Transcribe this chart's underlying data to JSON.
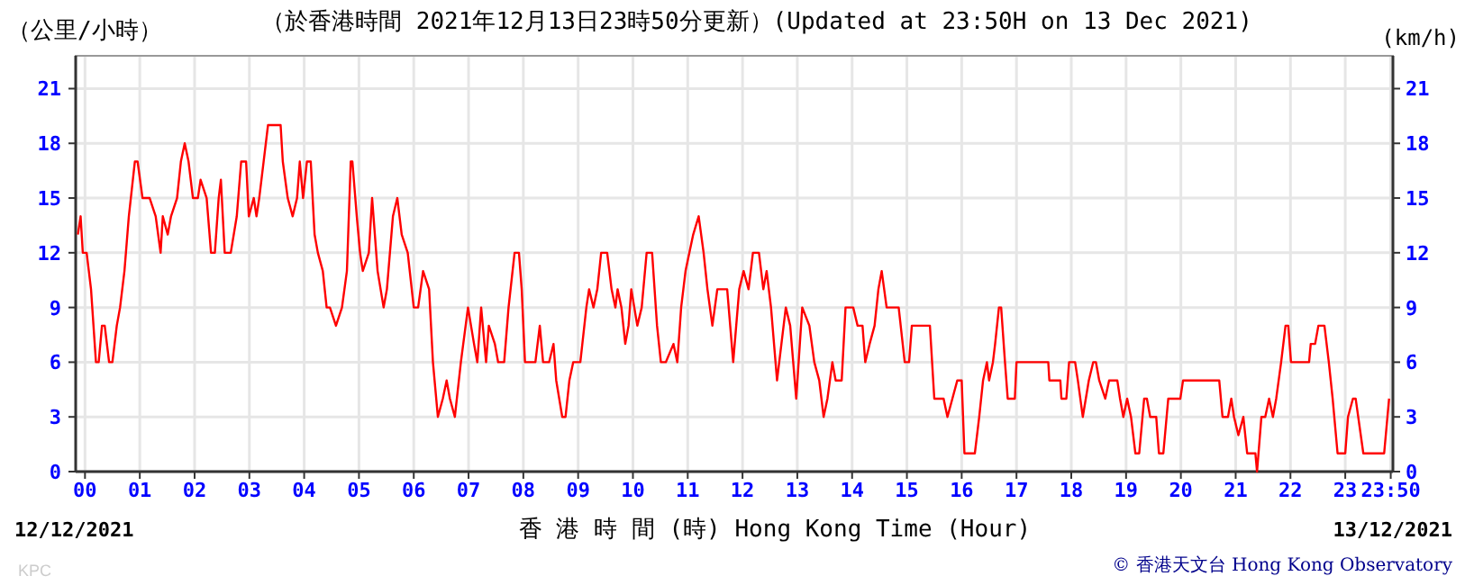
{
  "chart_data": {
    "type": "line",
    "title": "（於香港時間 2021年12月13日23時50分更新）(Updated at 23:50H on 13 Dec 2021)",
    "ylabel": "（公里/小時）",
    "y2label": "(km/h)",
    "xlabel": "香 港 時 間 (時) Hong Kong Time (Hour)",
    "annotations": [
      "12/12/2021",
      "13/12/2021",
      "© 香港天文台 Hong Kong Observatory",
      "KPC"
    ],
    "xlim": [
      -0.17,
      23.87
    ],
    "ylim": [
      0,
      22.8
    ],
    "y2lim": [
      0,
      22.8
    ],
    "xticks": [
      {
        "value": 0,
        "label": "00"
      },
      {
        "value": 1,
        "label": "01"
      },
      {
        "value": 2,
        "label": "02"
      },
      {
        "value": 3,
        "label": "03"
      },
      {
        "value": 4,
        "label": "04"
      },
      {
        "value": 5,
        "label": "05"
      },
      {
        "value": 6,
        "label": "06"
      },
      {
        "value": 7,
        "label": "07"
      },
      {
        "value": 8,
        "label": "08"
      },
      {
        "value": 9,
        "label": "09"
      },
      10,
      11,
      12,
      13,
      14,
      15,
      16,
      17,
      18,
      19,
      20,
      21,
      22,
      23,
      {
        "value": 23.83,
        "label": "23:50"
      }
    ],
    "yticks": [
      0,
      3,
      6,
      9,
      12,
      15,
      18,
      21
    ],
    "y2ticks": [
      0,
      3,
      6,
      9,
      12,
      15,
      18,
      21
    ],
    "grid": true,
    "line_style": "solid",
    "series": [
      {
        "color": "#ff0000",
        "x": [
          -0.13,
          -0.08,
          -0.04,
          0.03,
          0.11,
          0.2,
          0.25,
          0.31,
          0.36,
          0.44,
          0.5,
          0.58,
          0.64,
          0.72,
          0.8,
          0.91,
          0.96,
          1.05,
          1.18,
          1.29,
          1.38,
          1.42,
          1.51,
          1.57,
          1.68,
          1.75,
          1.82,
          1.89,
          1.97,
          2.06,
          2.11,
          2.22,
          2.3,
          2.37,
          2.44,
          2.48,
          2.55,
          2.66,
          2.77,
          2.85,
          2.94,
          2.99,
          3.08,
          3.13,
          3.18,
          3.26,
          3.34,
          3.48,
          3.57,
          3.61,
          3.7,
          3.79,
          3.87,
          3.92,
          3.98,
          4.05,
          4.12,
          4.19,
          4.25,
          4.34,
          4.41,
          4.47,
          4.58,
          4.69,
          4.78,
          4.85,
          4.88,
          4.96,
          5.02,
          5.07,
          5.18,
          5.24,
          5.34,
          5.45,
          5.51,
          5.62,
          5.7,
          5.78,
          5.89,
          6.0,
          6.08,
          6.17,
          6.28,
          6.35,
          6.44,
          6.53,
          6.6,
          6.66,
          6.75,
          6.86,
          6.99,
          7.1,
          7.16,
          7.23,
          7.32,
          7.37,
          7.48,
          7.54,
          7.65,
          7.73,
          7.84,
          7.92,
          7.97,
          8.03,
          8.08,
          8.22,
          8.3,
          8.36,
          8.47,
          8.55,
          8.6,
          8.71,
          8.77,
          8.84,
          8.91,
          9.04,
          9.15,
          9.2,
          9.28,
          9.35,
          9.42,
          9.53,
          9.61,
          9.68,
          9.72,
          9.79,
          9.86,
          9.92,
          9.97,
          10.08,
          10.16,
          10.25,
          10.35,
          10.44,
          10.51,
          10.6,
          10.74,
          10.81,
          10.88,
          10.96,
          11.03,
          11.1,
          11.2,
          11.29,
          11.36,
          11.45,
          11.54,
          11.61,
          11.72,
          11.83,
          11.94,
          12.02,
          12.11,
          12.19,
          12.3,
          12.38,
          12.44,
          12.52,
          12.63,
          12.71,
          12.79,
          12.87,
          12.98,
          13.09,
          13.22,
          13.31,
          13.4,
          13.48,
          13.55,
          13.64,
          13.7,
          13.81,
          13.88,
          14.02,
          14.1,
          14.19,
          14.24,
          14.32,
          14.41,
          14.48,
          14.54,
          14.63,
          14.85,
          14.96,
          15.04,
          15.09,
          15.42,
          15.5,
          15.67,
          15.74,
          15.83,
          15.92,
          16.0,
          16.05,
          16.15,
          16.24,
          16.32,
          16.39,
          16.46,
          16.5,
          16.57,
          16.61,
          16.68,
          16.72,
          16.79,
          16.84,
          16.97,
          17.0,
          17.58,
          17.6,
          17.8,
          17.82,
          17.91,
          17.96,
          18.07,
          18.12,
          18.21,
          18.32,
          18.4,
          18.45,
          18.51,
          18.62,
          18.69,
          18.84,
          18.89,
          18.95,
          19.02,
          19.09,
          19.17,
          19.24,
          19.33,
          19.38,
          19.44,
          19.55,
          19.6,
          19.68,
          19.77,
          19.99,
          20.04,
          20.7,
          20.76,
          20.86,
          20.92,
          20.97,
          21.05,
          21.14,
          21.21,
          21.36,
          21.39,
          21.47,
          21.54,
          21.61,
          21.68,
          21.74,
          21.83,
          21.91,
          21.96,
          22.01,
          22.34,
          22.37,
          22.45,
          22.51,
          22.62,
          22.7,
          22.77,
          22.86,
          23.0,
          23.05,
          23.14,
          23.19,
          23.33,
          23.71,
          23.8
        ],
        "values": [
          13,
          14,
          12,
          12,
          10,
          6,
          6,
          8,
          8,
          6,
          6,
          8,
          9,
          11,
          14,
          17,
          17,
          15,
          15,
          14,
          12,
          14,
          13,
          14,
          15,
          17,
          18,
          17,
          15,
          15,
          16,
          15,
          12,
          12,
          15,
          16,
          12,
          12,
          14,
          17,
          17,
          14,
          15,
          14,
          15,
          17,
          19,
          19,
          19,
          17,
          15,
          14,
          15,
          17,
          15,
          17,
          17,
          13,
          12,
          11,
          9,
          9,
          8,
          9,
          11,
          17,
          17,
          14,
          12,
          11,
          12,
          15,
          11,
          9,
          10,
          14,
          15,
          13,
          12,
          9,
          9,
          11,
          10,
          6,
          3,
          4,
          5,
          4,
          3,
          6,
          9,
          7,
          6,
          9,
          6,
          8,
          7,
          6,
          6,
          9,
          12,
          12,
          10,
          6,
          6,
          6,
          8,
          6,
          6,
          7,
          5,
          3,
          3,
          5,
          6,
          6,
          9,
          10,
          9,
          10,
          12,
          12,
          10,
          9,
          10,
          9,
          7,
          8,
          10,
          8,
          9,
          12,
          12,
          8,
          6,
          6,
          7,
          6,
          9,
          11,
          12,
          13,
          14,
          12,
          10,
          8,
          10,
          10,
          10,
          6,
          10,
          11,
          10,
          12,
          12,
          10,
          11,
          9,
          5,
          7,
          9,
          8,
          4,
          9,
          8,
          6,
          5,
          3,
          4,
          6,
          5,
          5,
          9,
          9,
          8,
          8,
          6,
          7,
          8,
          10,
          11,
          9,
          9,
          6,
          6,
          8,
          8,
          4,
          4,
          3,
          4,
          5,
          5,
          1,
          1,
          1,
          3,
          5,
          6,
          5,
          6,
          7,
          9,
          9,
          6,
          4,
          4,
          6,
          6,
          5,
          5,
          4,
          4,
          6,
          6,
          5,
          3,
          5,
          6,
          6,
          5,
          4,
          5,
          5,
          4,
          3,
          4,
          3,
          1,
          1,
          4,
          4,
          3,
          3,
          1,
          1,
          4,
          4,
          5,
          5,
          3,
          3,
          4,
          3,
          2,
          3,
          1,
          1,
          0,
          3,
          3,
          4,
          3,
          4,
          6,
          8,
          8,
          6,
          6,
          7,
          7,
          8,
          8,
          6,
          4,
          1,
          1,
          3,
          4,
          4,
          1,
          1,
          4
        ]
      }
    ]
  }
}
